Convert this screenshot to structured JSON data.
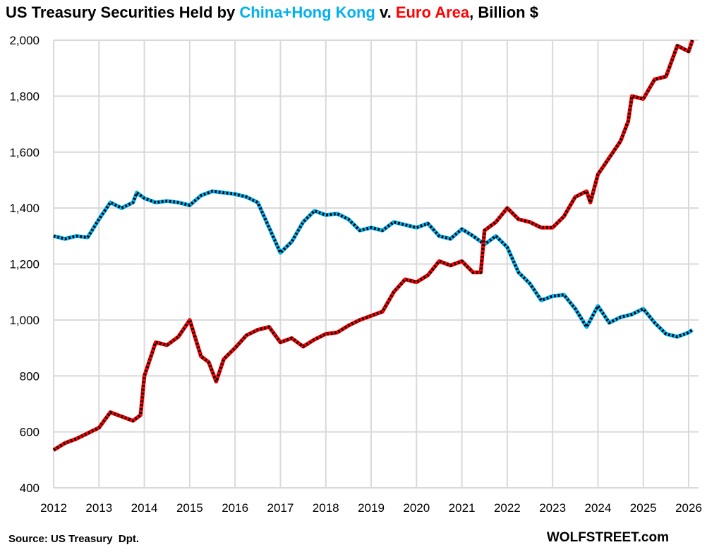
{
  "chart_data": {
    "type": "line",
    "title_parts": {
      "prefix": "US Treasury Securities Held by ",
      "series1": "China+Hong Kong",
      "middle": " v. ",
      "series2": "Euro Area",
      "suffix": ", Billion $"
    },
    "xlabel": "",
    "ylabel": "",
    "ylim": [
      400,
      2000
    ],
    "xlim": [
      2012,
      2026
    ],
    "y_ticks": [
      "400",
      "600",
      "800",
      "1,000",
      "1,200",
      "1,400",
      "1,600",
      "1,800",
      "2,000"
    ],
    "x_ticks": [
      "2012",
      "2013",
      "2014",
      "2015",
      "2016",
      "2017",
      "2018",
      "2019",
      "2020",
      "2021",
      "2022",
      "2023",
      "2024",
      "2025",
      "2026"
    ],
    "grid": true,
    "legend": "in title",
    "series": [
      {
        "name": "China+Hong Kong",
        "color": "#00B0F0",
        "x": [
          "2012-01",
          "2012-04",
          "2012-07",
          "2012-10",
          "2013-01",
          "2013-04",
          "2013-07",
          "2013-10",
          "2013-11",
          "2014-01",
          "2014-04",
          "2014-07",
          "2014-10",
          "2015-01",
          "2015-04",
          "2015-07",
          "2015-10",
          "2016-01",
          "2016-04",
          "2016-07",
          "2016-10",
          "2017-01",
          "2017-04",
          "2017-07",
          "2017-10",
          "2018-01",
          "2018-04",
          "2018-07",
          "2018-10",
          "2019-01",
          "2019-04",
          "2019-07",
          "2019-10",
          "2020-01",
          "2020-04",
          "2020-07",
          "2020-10",
          "2021-01",
          "2021-04",
          "2021-07",
          "2021-10",
          "2022-01",
          "2022-04",
          "2022-07",
          "2022-10",
          "2023-01",
          "2023-04",
          "2023-07",
          "2023-10",
          "2024-01",
          "2024-04",
          "2024-07",
          "2024-10",
          "2025-01",
          "2025-04",
          "2025-07",
          "2025-10",
          "2026-01",
          "2026-02"
        ],
        "values": [
          1300,
          1290,
          1300,
          1295,
          1360,
          1420,
          1400,
          1420,
          1455,
          1435,
          1420,
          1425,
          1420,
          1410,
          1445,
          1460,
          1455,
          1450,
          1440,
          1420,
          1330,
          1240,
          1280,
          1350,
          1390,
          1375,
          1380,
          1360,
          1320,
          1330,
          1320,
          1350,
          1340,
          1330,
          1345,
          1300,
          1290,
          1325,
          1300,
          1270,
          1300,
          1260,
          1170,
          1130,
          1070,
          1085,
          1090,
          1040,
          975,
          1050,
          990,
          1010,
          1020,
          1040,
          990,
          950,
          940,
          955,
          965
        ]
      },
      {
        "name": "Euro Area",
        "color": "#FF0000",
        "x": [
          "2012-01",
          "2012-04",
          "2012-07",
          "2012-10",
          "2013-01",
          "2013-04",
          "2013-07",
          "2013-10",
          "2013-12",
          "2014-01",
          "2014-04",
          "2014-07",
          "2014-10",
          "2015-01",
          "2015-04",
          "2015-06",
          "2015-08",
          "2015-10",
          "2016-01",
          "2016-04",
          "2016-07",
          "2016-10",
          "2017-01",
          "2017-04",
          "2017-07",
          "2017-10",
          "2018-01",
          "2018-04",
          "2018-07",
          "2018-10",
          "2019-01",
          "2019-04",
          "2019-07",
          "2019-10",
          "2020-01",
          "2020-04",
          "2020-07",
          "2020-10",
          "2021-01",
          "2021-04",
          "2021-06",
          "2021-07",
          "2021-10",
          "2022-01",
          "2022-04",
          "2022-07",
          "2022-10",
          "2023-01",
          "2023-04",
          "2023-07",
          "2023-10",
          "2023-11",
          "2024-01",
          "2024-04",
          "2024-07",
          "2024-09",
          "2024-10",
          "2025-01",
          "2025-04",
          "2025-07",
          "2025-10",
          "2026-01",
          "2026-02"
        ],
        "values": [
          535,
          560,
          575,
          595,
          615,
          670,
          655,
          640,
          660,
          800,
          920,
          910,
          940,
          1000,
          870,
          850,
          780,
          860,
          900,
          945,
          965,
          975,
          920,
          935,
          905,
          930,
          950,
          955,
          980,
          1000,
          1015,
          1030,
          1100,
          1145,
          1135,
          1160,
          1210,
          1195,
          1210,
          1170,
          1170,
          1320,
          1350,
          1400,
          1360,
          1350,
          1330,
          1330,
          1370,
          1440,
          1460,
          1420,
          1520,
          1580,
          1640,
          1710,
          1800,
          1790,
          1860,
          1870,
          1980,
          1960,
          2000
        ]
      }
    ]
  },
  "footer": {
    "source": "Source: US Treasury  Dpt.",
    "brand": "WOLFSTREET.com"
  }
}
